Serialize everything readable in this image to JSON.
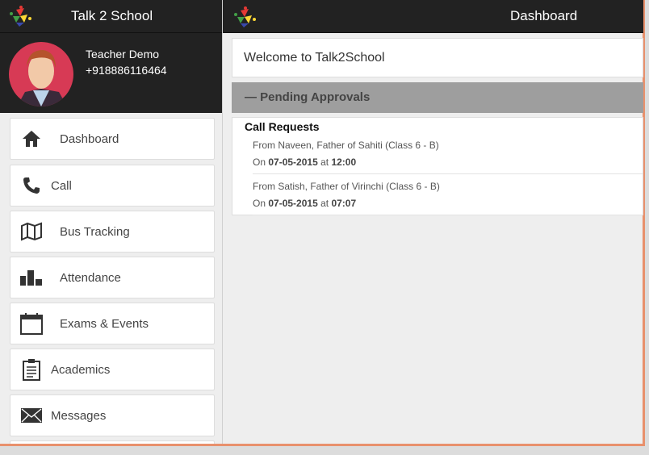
{
  "sidebar": {
    "app_title": "Talk 2 School",
    "profile": {
      "name": "Teacher Demo",
      "phone": "+918886116464"
    },
    "items": [
      {
        "label": "Dashboard",
        "icon": "home-icon"
      },
      {
        "label": "Call",
        "icon": "phone-icon"
      },
      {
        "label": "Bus Tracking",
        "icon": "map-icon"
      },
      {
        "label": "Attendance",
        "icon": "bar-chart-icon"
      },
      {
        "label": "Exams & Events",
        "icon": "calendar-icon"
      },
      {
        "label": "Academics",
        "icon": "clipboard-icon"
      },
      {
        "label": "Messages",
        "icon": "envelope-icon"
      }
    ]
  },
  "main": {
    "title": "Dashboard",
    "welcome": "Welcome to Talk2School",
    "pending_label": "Pending Approvals",
    "section_title": "Call Requests",
    "requests": [
      {
        "from": "From Naveen, Father of Sahiti (Class 6 - B)",
        "on": "On",
        "date": "07-05-2015",
        "at": "at",
        "time": "12:00"
      },
      {
        "from": "From Satish, Father of Virinchi (Class 6 - B)",
        "on": "On",
        "date": "07-05-2015",
        "at": "at",
        "time": "07:07"
      }
    ]
  },
  "colors": {
    "header": "#222222",
    "pending_bar": "#9e9e9e",
    "frame_border": "#e8906c"
  }
}
